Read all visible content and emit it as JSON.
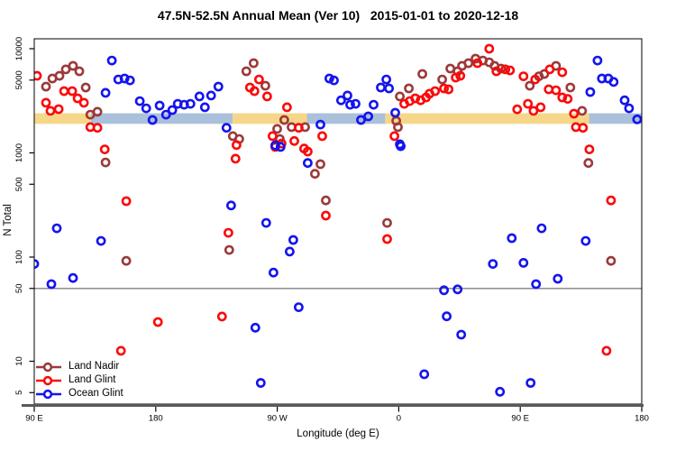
{
  "title": "47.5N-52.5N Annual Mean (Ver 10)   2015-01-01 to 2020-12-18",
  "legend": {
    "items": [
      "Land Nadir",
      "Land Glint",
      "Ocean Glint"
    ]
  },
  "chart_data": {
    "type": "scatter",
    "title": "47.5N-52.5N Annual Mean (Ver 10)   2015-01-01 to 2020-12-18",
    "xlabel": "Longitude (deg E)",
    "ylabel": "N Total",
    "grid": false,
    "legend_position": "bottom-left",
    "x_axis": {
      "range": [
        90,
        540
      ],
      "note": "longitude deg E, wrapping 90E->180->90W->0->90E->180",
      "ticks": [
        90,
        180,
        270,
        360,
        450,
        540
      ],
      "labels": [
        "90 E",
        "180",
        "90 W",
        "0",
        "90 E",
        "180"
      ]
    },
    "y_axis": {
      "scale": "log10",
      "range": [
        3.9,
        12400
      ],
      "ticks": [
        5,
        10,
        50,
        100,
        500,
        1000,
        5000,
        10000
      ],
      "labels": [
        "5",
        "10",
        "50",
        "100",
        "500",
        "1000",
        "5000",
        "10000"
      ]
    },
    "reference_line_y": 50,
    "reference_line_color": "#808080",
    "axis_line_color": "#595959",
    "surface_band": {
      "description": "land/ocean strip drawn across the plot",
      "value_range": [
        1900,
        2400
      ],
      "land_color": "#F6D78A",
      "ocean_color": "#AAC0DB",
      "segments": [
        {
          "from": 90,
          "to": 132,
          "surface": "land"
        },
        {
          "from": 132,
          "to": 237,
          "surface": "ocean"
        },
        {
          "from": 237,
          "to": 292,
          "surface": "land"
        },
        {
          "from": 292,
          "to": 350,
          "surface": "ocean"
        },
        {
          "from": 350,
          "to": 501,
          "surface": "land"
        },
        {
          "from": 501,
          "to": 540,
          "surface": "ocean"
        }
      ]
    },
    "series": [
      {
        "name": "Land Nadir",
        "color": "#9B3A3A",
        "marker": "open-circle",
        "points": [
          [
            98.7,
            4330
          ],
          [
            103.4,
            5180
          ],
          [
            108.7,
            5500
          ],
          [
            113.4,
            6330
          ],
          [
            118.7,
            6850
          ],
          [
            123.4,
            6070
          ],
          [
            128.1,
            4240
          ],
          [
            131.5,
            2330
          ],
          [
            136.8,
            2480
          ],
          [
            142.8,
            810
          ],
          [
            158.2,
            92
          ],
          [
            234.4,
            117
          ],
          [
            237.1,
            1450
          ],
          [
            241.8,
            1360
          ],
          [
            247.1,
            6070
          ],
          [
            252.5,
            7270
          ],
          [
            261.2,
            4420
          ],
          [
            269.9,
            1700
          ],
          [
            271.9,
            1360
          ],
          [
            275.2,
            2070
          ],
          [
            280.6,
            1770
          ],
          [
            290.6,
            1770
          ],
          [
            297.9,
            630
          ],
          [
            302.0,
            780
          ],
          [
            306.0,
            350
          ],
          [
            351.4,
            213
          ],
          [
            358.1,
            2030
          ],
          [
            359.4,
            1770
          ],
          [
            360.8,
            3480
          ],
          [
            367.5,
            4160
          ],
          [
            377.5,
            5720
          ],
          [
            392.2,
            5070
          ],
          [
            398.2,
            6450
          ],
          [
            403.6,
            6070
          ],
          [
            406.9,
            6850
          ],
          [
            411.6,
            7270
          ],
          [
            416.9,
            8030
          ],
          [
            422.3,
            7700
          ],
          [
            427.0,
            7400
          ],
          [
            431.0,
            6850
          ],
          [
            435.7,
            6450
          ],
          [
            457.1,
            4420
          ],
          [
            463.8,
            5430
          ],
          [
            467.8,
            5720
          ],
          [
            476.5,
            6850
          ],
          [
            487.1,
            4240
          ],
          [
            495.8,
            2530
          ],
          [
            500.5,
            800
          ],
          [
            517.2,
            92
          ]
        ]
      },
      {
        "name": "Land Glint",
        "color": "#FA0A0A",
        "marker": "open-circle",
        "points": [
          [
            92.0,
            5500
          ],
          [
            98.7,
            3030
          ],
          [
            102.0,
            2530
          ],
          [
            108.1,
            2630
          ],
          [
            112.1,
            3920
          ],
          [
            118.1,
            3920
          ],
          [
            122.1,
            3340
          ],
          [
            126.8,
            3030
          ],
          [
            131.5,
            1770
          ],
          [
            136.8,
            1740
          ],
          [
            142.2,
            1080
          ],
          [
            154.2,
            12.6
          ],
          [
            158.2,
            344
          ],
          [
            181.6,
            23.8
          ],
          [
            229.1,
            26.9
          ],
          [
            233.8,
            171
          ],
          [
            239.1,
            880
          ],
          [
            239.8,
            1190
          ],
          [
            249.8,
            4240
          ],
          [
            253.1,
            3920
          ],
          [
            256.5,
            5070
          ],
          [
            262.5,
            3480
          ],
          [
            266.5,
            1450
          ],
          [
            268.5,
            1140
          ],
          [
            273.2,
            1230
          ],
          [
            277.2,
            2740
          ],
          [
            282.6,
            1300
          ],
          [
            285.9,
            1740
          ],
          [
            289.9,
            1100
          ],
          [
            292.6,
            1030
          ],
          [
            303.3,
            1450
          ],
          [
            306.0,
            250
          ],
          [
            351.4,
            149
          ],
          [
            356.8,
            1450
          ],
          [
            364.1,
            2960
          ],
          [
            368.1,
            3140
          ],
          [
            372.2,
            3340
          ],
          [
            376.2,
            3200
          ],
          [
            380.2,
            3410
          ],
          [
            382.8,
            3700
          ],
          [
            386.9,
            3920
          ],
          [
            393.5,
            4160
          ],
          [
            396.9,
            4080
          ],
          [
            402.2,
            5280
          ],
          [
            405.6,
            5500
          ],
          [
            418.3,
            7270
          ],
          [
            427.0,
            10000
          ],
          [
            432.3,
            6070
          ],
          [
            439.0,
            6330
          ],
          [
            442.4,
            6200
          ],
          [
            447.7,
            2620
          ],
          [
            452.4,
            5430
          ],
          [
            455.7,
            2960
          ],
          [
            459.8,
            2530
          ],
          [
            461.1,
            5070
          ],
          [
            465.1,
            2740
          ],
          [
            471.1,
            4080
          ],
          [
            471.8,
            6330
          ],
          [
            476.5,
            3990
          ],
          [
            481.1,
            5940
          ],
          [
            481.1,
            3410
          ],
          [
            485.1,
            3300
          ],
          [
            489.8,
            2380
          ],
          [
            491.2,
            1770
          ],
          [
            496.5,
            1740
          ],
          [
            501.2,
            1080
          ],
          [
            513.9,
            12.6
          ],
          [
            517.2,
            350
          ]
        ]
      },
      {
        "name": "Ocean Glint",
        "color": "#1414EE",
        "marker": "open-circle",
        "points": [
          [
            90.0,
            86
          ],
          [
            102.7,
            55
          ],
          [
            106.7,
            189
          ],
          [
            118.7,
            63
          ],
          [
            139.5,
            143
          ],
          [
            142.8,
            3770
          ],
          [
            147.5,
            7700
          ],
          [
            152.2,
            5070
          ],
          [
            156.9,
            5180
          ],
          [
            160.9,
            4970
          ],
          [
            168.2,
            3140
          ],
          [
            172.9,
            2680
          ],
          [
            177.6,
            2070
          ],
          [
            182.9,
            2850
          ],
          [
            187.6,
            2330
          ],
          [
            192.3,
            2580
          ],
          [
            196.3,
            2960
          ],
          [
            201.0,
            2900
          ],
          [
            205.7,
            2960
          ],
          [
            212.4,
            3480
          ],
          [
            216.4,
            2740
          ],
          [
            221.0,
            3550
          ],
          [
            226.4,
            4330
          ],
          [
            232.4,
            1740
          ],
          [
            235.8,
            313
          ],
          [
            253.8,
            21
          ],
          [
            257.8,
            6.2
          ],
          [
            261.8,
            213
          ],
          [
            267.2,
            71
          ],
          [
            268.5,
            1180
          ],
          [
            272.5,
            1140
          ],
          [
            279.2,
            113
          ],
          [
            281.9,
            146
          ],
          [
            285.9,
            33
          ],
          [
            292.6,
            800
          ],
          [
            302.0,
            1870
          ],
          [
            308.6,
            5180
          ],
          [
            312.0,
            4970
          ],
          [
            317.3,
            3200
          ],
          [
            322.0,
            3550
          ],
          [
            324.0,
            2900
          ],
          [
            328.0,
            2960
          ],
          [
            332.0,
            2070
          ],
          [
            337.4,
            2240
          ],
          [
            341.4,
            2900
          ],
          [
            346.7,
            4240
          ],
          [
            350.8,
            5070
          ],
          [
            352.8,
            4160
          ],
          [
            357.4,
            2430
          ],
          [
            360.8,
            1210
          ],
          [
            361.5,
            1160
          ],
          [
            378.9,
            7.5
          ],
          [
            393.5,
            48
          ],
          [
            395.5,
            27
          ],
          [
            403.6,
            49
          ],
          [
            406.3,
            18
          ],
          [
            429.7,
            86
          ],
          [
            435.0,
            5.1
          ],
          [
            443.7,
            152
          ],
          [
            452.4,
            88
          ],
          [
            457.7,
            6.2
          ],
          [
            461.7,
            55
          ],
          [
            465.8,
            189
          ],
          [
            477.8,
            62
          ],
          [
            498.5,
            143
          ],
          [
            501.9,
            3840
          ],
          [
            507.2,
            7700
          ],
          [
            510.5,
            5180
          ],
          [
            515.2,
            5180
          ],
          [
            519.2,
            4800
          ],
          [
            527.3,
            3200
          ],
          [
            530.6,
            2680
          ],
          [
            536.6,
            2100
          ]
        ]
      }
    ]
  }
}
